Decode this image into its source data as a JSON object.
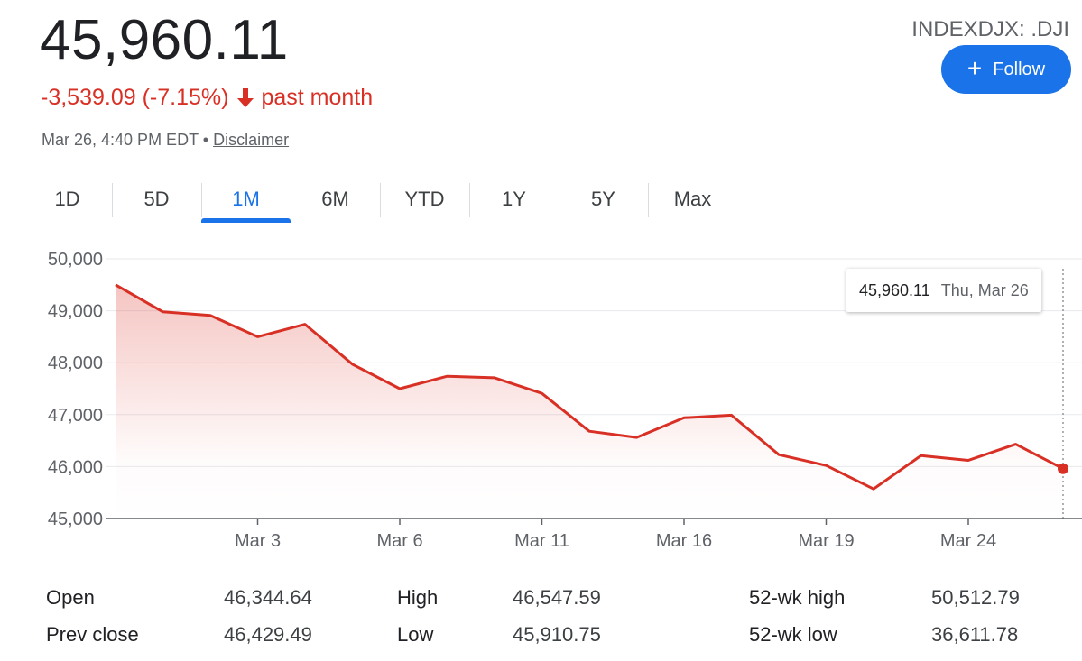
{
  "quote": {
    "price": "45,960.11",
    "change": "-3,539.09 (-7.15%)",
    "period": "past month",
    "timestamp": "Mar 26, 4:40 PM EDT",
    "separator": "•",
    "disclaimer": "Disclaimer",
    "ticker": "INDEXDJX: .DJI"
  },
  "follow_button": {
    "icon": "plus-icon",
    "label": "Follow"
  },
  "tabs": [
    {
      "label": "1D",
      "active": false
    },
    {
      "label": "5D",
      "active": false
    },
    {
      "label": "1M",
      "active": true
    },
    {
      "label": "6M",
      "active": false
    },
    {
      "label": "YTD",
      "active": false
    },
    {
      "label": "1Y",
      "active": false
    },
    {
      "label": "5Y",
      "active": false
    },
    {
      "label": "Max",
      "active": false
    }
  ],
  "tooltip": {
    "value": "45,960.11",
    "date": "Thu, Mar 26"
  },
  "colors": {
    "down": "#d93025",
    "accent": "#1a73e8",
    "text": "#202124",
    "muted": "#5f6368"
  },
  "stats": {
    "rows": [
      [
        {
          "label": "Open",
          "value": "46,344.64"
        },
        {
          "label": "High",
          "value": "46,547.59"
        },
        {
          "label": "52-wk high",
          "value": "50,512.79"
        }
      ],
      [
        {
          "label": "Prev close",
          "value": "46,429.49"
        },
        {
          "label": "Low",
          "value": "45,910.75"
        },
        {
          "label": "52-wk low",
          "value": "36,611.78"
        }
      ]
    ]
  },
  "chart_data": {
    "type": "area",
    "ylim": [
      45000,
      50000
    ],
    "yticks": [
      50000,
      49000,
      48000,
      47000,
      46000,
      45000
    ],
    "ytick_labels": [
      "50,000",
      "49,000",
      "48,000",
      "47,000",
      "46,000",
      "45,000"
    ],
    "xticks": [
      {
        "label": "Mar 3",
        "index": 3
      },
      {
        "label": "Mar 6",
        "index": 6
      },
      {
        "label": "Mar 11",
        "index": 9
      },
      {
        "label": "Mar 16",
        "index": 12
      },
      {
        "label": "Mar 19",
        "index": 15
      },
      {
        "label": "Mar 24",
        "index": 18
      }
    ],
    "x": [
      "Feb 26",
      "Feb 27",
      "Mar 2",
      "Mar 3",
      "Mar 4",
      "Mar 5",
      "Mar 6",
      "Mar 9",
      "Mar 10",
      "Mar 11",
      "Mar 12",
      "Mar 13",
      "Mar 16",
      "Mar 17",
      "Mar 18",
      "Mar 19",
      "Mar 20",
      "Mar 23",
      "Mar 24",
      "Mar 25",
      "Mar 26"
    ],
    "values": [
      49500,
      48980,
      48910,
      48500,
      48740,
      47970,
      47500,
      47740,
      47710,
      47410,
      46680,
      46560,
      46940,
      46990,
      46230,
      46020,
      45570,
      46210,
      46120,
      46430,
      45960.11
    ],
    "grid": true,
    "line_color": "#d93025"
  }
}
